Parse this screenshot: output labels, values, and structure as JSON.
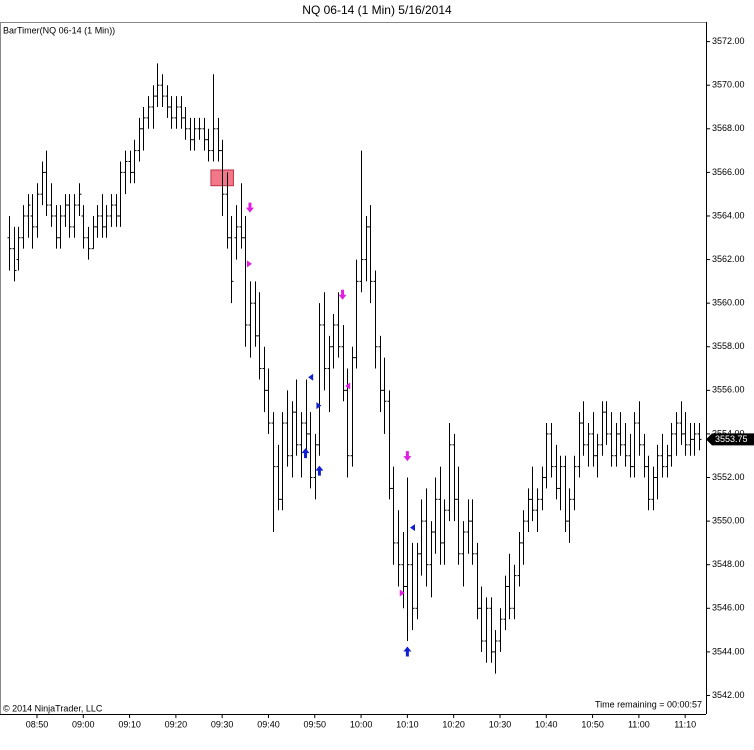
{
  "chart_data": {
    "type": "ohlc",
    "title": "NQ 06-14 (1 Min)  5/16/2014",
    "indicator_label": "BarTimer(NQ 06-14 (1 Min))",
    "copyright": "© 2014 NinjaTrader, LLC",
    "time_remaining": "Time remaining = 00:00:57",
    "color": "#000000",
    "categories": [
      null,
      null,
      null,
      null,
      null,
      null,
      "08:50",
      null,
      null,
      null,
      null,
      null,
      null,
      null,
      null,
      null,
      "09:00",
      null,
      null,
      null,
      null,
      null,
      null,
      null,
      null,
      null,
      "09:10",
      null,
      null,
      null,
      null,
      null,
      null,
      null,
      null,
      null,
      "09:20",
      null,
      null,
      null,
      null,
      null,
      null,
      null,
      null,
      null,
      "09:30",
      null,
      null,
      null,
      null,
      null,
      null,
      null,
      null,
      null,
      "09:40",
      null,
      null,
      null,
      null,
      null,
      null,
      null,
      null,
      null,
      "09:50",
      null,
      null,
      null,
      null,
      null,
      null,
      null,
      null,
      null,
      "10:00",
      null,
      null,
      null,
      null,
      null,
      null,
      null,
      null,
      null,
      "10:10",
      null,
      null,
      null,
      null,
      null,
      null,
      null,
      null,
      null,
      "10:20",
      null,
      null,
      null,
      null,
      null,
      null,
      null,
      null,
      null,
      "10:30",
      null,
      null,
      null,
      null,
      null,
      null,
      null,
      null,
      null,
      "10:40",
      null,
      null,
      null,
      null,
      null,
      null,
      null,
      null,
      null,
      "10:50",
      null,
      null,
      null,
      null,
      null,
      null,
      null,
      null,
      null,
      "11:00",
      null,
      null,
      null,
      null,
      null,
      null,
      null,
      null,
      null,
      "11:10",
      null,
      null,
      null
    ],
    "values": [
      [
        3563,
        3564,
        3561.5,
        3562.5
      ],
      [
        3562.5,
        3563.5,
        3561,
        3561.5
      ],
      [
        3562,
        3563.5,
        3561.5,
        3563
      ],
      [
        3563,
        3564.5,
        3562.5,
        3564
      ],
      [
        3564,
        3565,
        3563,
        3564.5
      ],
      [
        3564,
        3565,
        3562.5,
        3563.5
      ],
      [
        3563.5,
        3565.5,
        3563,
        3565
      ],
      [
        3565,
        3566.5,
        3564.5,
        3566
      ],
      [
        3566,
        3567,
        3564,
        3564.5
      ],
      [
        3564.5,
        3565.5,
        3563.5,
        3564
      ],
      [
        3564,
        3564.5,
        3562.5,
        3563
      ],
      [
        3563,
        3564.5,
        3562.5,
        3564
      ],
      [
        3564,
        3565,
        3563.5,
        3564.5
      ],
      [
        3564.5,
        3565,
        3563,
        3563.5
      ],
      [
        3563.5,
        3565,
        3563,
        3564.5
      ],
      [
        3564.5,
        3565.5,
        3564,
        3565
      ],
      [
        3564,
        3564.5,
        3562.5,
        3563
      ],
      [
        3563,
        3563.5,
        3562,
        3562.5
      ],
      [
        3562.5,
        3564,
        3562.5,
        3563.5
      ],
      [
        3563.5,
        3564.5,
        3563,
        3564
      ],
      [
        3564,
        3565,
        3563,
        3563.5
      ],
      [
        3563.5,
        3564.5,
        3563,
        3564
      ],
      [
        3564,
        3565,
        3563.5,
        3564.5
      ],
      [
        3564.5,
        3565,
        3563.5,
        3564
      ],
      [
        3564,
        3566.5,
        3563.5,
        3566
      ],
      [
        3566,
        3567,
        3565,
        3566.5
      ],
      [
        3566.5,
        3567,
        3565.5,
        3566
      ],
      [
        3566,
        3567.5,
        3565.5,
        3567
      ],
      [
        3567,
        3568.5,
        3566.5,
        3568
      ],
      [
        3568,
        3569,
        3567,
        3568.5
      ],
      [
        3568.5,
        3569.5,
        3568,
        3569
      ],
      [
        3569,
        3570,
        3568,
        3569.5
      ],
      [
        3569.5,
        3571,
        3569,
        3570
      ],
      [
        3570,
        3570.5,
        3569,
        3569.5
      ],
      [
        3569.5,
        3570,
        3568.5,
        3569
      ],
      [
        3569,
        3569.5,
        3568,
        3568.5
      ],
      [
        3568.5,
        3569.5,
        3568,
        3569
      ],
      [
        3569,
        3569.5,
        3568,
        3568.5
      ],
      [
        3568.5,
        3569,
        3567.5,
        3568
      ],
      [
        3568,
        3568.5,
        3567,
        3567.5
      ],
      [
        3567.5,
        3568.5,
        3567,
        3568
      ],
      [
        3568,
        3568.5,
        3567.5,
        3568
      ],
      [
        3568,
        3568.5,
        3567,
        3567.5
      ],
      [
        3567.5,
        3568,
        3566.5,
        3567
      ],
      [
        3567,
        3570.5,
        3566.5,
        3568
      ],
      [
        3568,
        3568.5,
        3566.5,
        3567
      ],
      [
        3567,
        3567.5,
        3564,
        3565
      ],
      [
        3565,
        3566,
        3562.5,
        3563
      ],
      [
        3563,
        3564,
        3560,
        3561
      ],
      [
        3563,
        3564.5,
        3562,
        3563.5
      ],
      [
        3563.5,
        3565.5,
        3562.5,
        3563
      ],
      [
        3563,
        3564,
        3558,
        3559
      ],
      [
        3559,
        3561,
        3557.5,
        3560
      ],
      [
        3560,
        3561,
        3558,
        3558.5
      ],
      [
        3558.5,
        3560.5,
        3556.5,
        3557
      ],
      [
        3557,
        3558,
        3555,
        3556
      ],
      [
        3556,
        3557,
        3554,
        3554.5
      ],
      [
        3554.5,
        3555,
        3549.5,
        3552.5
      ],
      [
        3552.5,
        3553.5,
        3550.5,
        3551
      ],
      [
        3551,
        3555,
        3550.5,
        3554.5
      ],
      [
        3554.5,
        3556,
        3552.5,
        3553
      ],
      [
        3553,
        3555.5,
        3552,
        3555
      ],
      [
        3555,
        3556.5,
        3553,
        3553.5
      ],
      [
        3553.5,
        3555,
        3552,
        3554.5
      ],
      [
        3554.5,
        3556.5,
        3553,
        3554
      ],
      [
        3554,
        3555,
        3551.5,
        3552
      ],
      [
        3552,
        3554,
        3551,
        3553.5
      ],
      [
        3553.5,
        3560,
        3553,
        3559
      ],
      [
        3559,
        3560.5,
        3556,
        3557
      ],
      [
        3557,
        3558.5,
        3555,
        3558
      ],
      [
        3558,
        3559.5,
        3557,
        3559
      ],
      [
        3559,
        3560.5,
        3557.5,
        3558
      ],
      [
        3558,
        3559,
        3555.5,
        3556
      ],
      [
        3556,
        3557,
        3552,
        3553
      ],
      [
        3553,
        3558,
        3552.5,
        3557.5
      ],
      [
        3557.5,
        3562,
        3557,
        3561
      ],
      [
        3561,
        3567,
        3560.5,
        3562
      ],
      [
        3562,
        3564,
        3561,
        3563.5
      ],
      [
        3563.5,
        3564.5,
        3560,
        3561
      ],
      [
        3561,
        3561.5,
        3557,
        3558
      ],
      [
        3558,
        3558.5,
        3555,
        3556
      ],
      [
        3556,
        3557.5,
        3554,
        3555.5
      ],
      [
        3555.5,
        3556,
        3551,
        3551.5
      ],
      [
        3551.5,
        3552.5,
        3548,
        3549
      ],
      [
        3549,
        3550.5,
        3547,
        3548
      ],
      [
        3548,
        3549.5,
        3546,
        3547
      ],
      [
        3547,
        3552,
        3544.5,
        3548
      ],
      [
        3548,
        3549,
        3545,
        3546
      ],
      [
        3546,
        3549,
        3545.5,
        3548.5
      ],
      [
        3548.5,
        3551,
        3547.5,
        3550
      ],
      [
        3550,
        3551.5,
        3547,
        3548
      ],
      [
        3548,
        3550,
        3546.5,
        3549.5
      ],
      [
        3549.5,
        3552,
        3548.5,
        3551
      ],
      [
        3551,
        3552.5,
        3548,
        3549
      ],
      [
        3549,
        3551,
        3548,
        3550.5
      ],
      [
        3550.5,
        3554.5,
        3550,
        3553.5
      ],
      [
        3553.5,
        3554,
        3550,
        3551
      ],
      [
        3551,
        3552.5,
        3548,
        3548.5
      ],
      [
        3548.5,
        3550,
        3547,
        3549.5
      ],
      [
        3549.5,
        3551,
        3548.5,
        3550
      ],
      [
        3550,
        3551,
        3548,
        3548.5
      ],
      [
        3548.5,
        3549,
        3545.5,
        3546
      ],
      [
        3546,
        3547,
        3544,
        3544.5
      ],
      [
        3544.5,
        3546.5,
        3543.5,
        3546
      ],
      [
        3546,
        3546.5,
        3543.5,
        3544
      ],
      [
        3544,
        3545,
        3543,
        3544.5
      ],
      [
        3544.5,
        3546,
        3544,
        3545.5
      ],
      [
        3545.5,
        3547.5,
        3545,
        3547
      ],
      [
        3547,
        3548.5,
        3545.5,
        3546
      ],
      [
        3546,
        3548,
        3545.5,
        3547.5
      ],
      [
        3547.5,
        3549.5,
        3547,
        3549
      ],
      [
        3549,
        3550.5,
        3548,
        3550
      ],
      [
        3550,
        3551.5,
        3549.5,
        3551
      ],
      [
        3551,
        3552.5,
        3550,
        3550.5
      ],
      [
        3550.5,
        3551.5,
        3549.5,
        3551
      ],
      [
        3551,
        3552.5,
        3550.5,
        3552
      ],
      [
        3552,
        3554.5,
        3551.5,
        3554
      ],
      [
        3554,
        3554.5,
        3552,
        3552.5
      ],
      [
        3552.5,
        3553.5,
        3551,
        3551.5
      ],
      [
        3551.5,
        3553,
        3550.5,
        3552.5
      ],
      [
        3552.5,
        3553,
        3549.5,
        3550
      ],
      [
        3550,
        3551.5,
        3549,
        3551
      ],
      [
        3551,
        3553,
        3550.5,
        3552.5
      ],
      [
        3552.5,
        3555,
        3552,
        3554.5
      ],
      [
        3554.5,
        3555.5,
        3553,
        3553.5
      ],
      [
        3553.5,
        3554.5,
        3552.5,
        3554
      ],
      [
        3554,
        3555,
        3552.5,
        3553
      ],
      [
        3553,
        3554,
        3552,
        3553.5
      ],
      [
        3553.5,
        3555.5,
        3553,
        3555
      ],
      [
        3555,
        3555.5,
        3553.5,
        3554
      ],
      [
        3554,
        3555,
        3552.5,
        3553
      ],
      [
        3553,
        3554.5,
        3552.5,
        3554
      ],
      [
        3554,
        3555,
        3553,
        3553.5
      ],
      [
        3553.5,
        3554.5,
        3552.5,
        3553
      ],
      [
        3553,
        3554,
        3552,
        3552.5
      ],
      [
        3552.5,
        3555,
        3552,
        3554.5
      ],
      [
        3554.5,
        3555.5,
        3553,
        3553.5
      ],
      [
        3553.5,
        3554,
        3552,
        3552.5
      ],
      [
        3552.5,
        3553,
        3550.5,
        3551
      ],
      [
        3551,
        3552.5,
        3550.5,
        3552
      ],
      [
        3552,
        3553.5,
        3551,
        3553
      ],
      [
        3553,
        3554,
        3552,
        3552.5
      ],
      [
        3552.5,
        3553.5,
        3552,
        3553
      ],
      [
        3553,
        3554.5,
        3552.5,
        3554
      ],
      [
        3554,
        3555,
        3553,
        3554.5
      ],
      [
        3554.5,
        3555.5,
        3553.5,
        3554
      ],
      [
        3554,
        3555,
        3553,
        3553.5
      ],
      [
        3553.5,
        3554.5,
        3553,
        3553.75
      ],
      [
        3553.75,
        3554.5,
        3553,
        3554
      ],
      [
        3554,
        3554.5,
        3553.25,
        3553.75
      ]
    ],
    "last_price": 3553.75,
    "ylim": [
      3541.15,
      3572.9
    ],
    "yticks": [
      {
        "value": 3542,
        "label": "3542.00"
      },
      {
        "value": 3544,
        "label": "3544.00"
      },
      {
        "value": 3546,
        "label": "3546.00"
      },
      {
        "value": 3548,
        "label": "3548.00"
      },
      {
        "value": 3550,
        "label": "3550.00"
      },
      {
        "value": 3552,
        "label": "3552.00"
      },
      {
        "value": 3554,
        "label": "3554.00"
      },
      {
        "value": 3556,
        "label": "3556.00"
      },
      {
        "value": 3558,
        "label": "3558.00"
      },
      {
        "value": 3560,
        "label": "3560.00"
      },
      {
        "value": 3562,
        "label": "3562.00"
      },
      {
        "value": 3564,
        "label": "3564.00"
      },
      {
        "value": 3566,
        "label": "3566.00"
      },
      {
        "value": 3568,
        "label": "3568.00"
      },
      {
        "value": 3570,
        "label": "3570.00"
      },
      {
        "value": 3572,
        "label": "3572.00"
      }
    ],
    "markers": [
      {
        "shape": "arrow-down",
        "index": 52,
        "price": 3564.2,
        "color": "#e020e0"
      },
      {
        "shape": "arrow-down",
        "index": 72,
        "price": 3560.2,
        "color": "#e020e0"
      },
      {
        "shape": "arrow-down",
        "index": 86,
        "price": 3552.8,
        "color": "#e020e0"
      },
      {
        "shape": "arrow-up",
        "index": 64,
        "price": 3553.3,
        "color": "#1020d0"
      },
      {
        "shape": "arrow-up",
        "index": 67,
        "price": 3552.5,
        "color": "#1020d0"
      },
      {
        "shape": "arrow-up",
        "index": 86,
        "price": 3544.2,
        "color": "#1020d0"
      },
      {
        "shape": "triangle-right",
        "index": 52,
        "price": 3561.8,
        "color": "#e020e0"
      },
      {
        "shape": "triangle-left",
        "index": 73,
        "price": 3556.2,
        "color": "#e020e0"
      },
      {
        "shape": "triangle-right",
        "index": 85,
        "price": 3546.7,
        "color": "#e020e0"
      },
      {
        "shape": "triangle-left",
        "index": 65,
        "price": 3556.6,
        "color": "#1020d0"
      },
      {
        "shape": "triangle-right",
        "index": 67,
        "price": 3555.3,
        "color": "#1020d0"
      },
      {
        "shape": "triangle-left",
        "index": 87,
        "price": 3549.7,
        "color": "#1020d0"
      }
    ],
    "zone": {
      "start_index": 44,
      "end_index": 48,
      "top": 3565.95,
      "bottom": 3565.55,
      "color": "#f07888"
    }
  }
}
